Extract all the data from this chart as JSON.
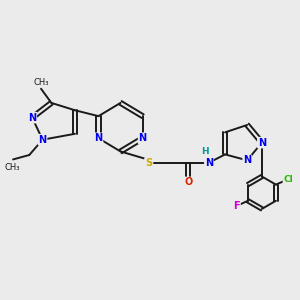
{
  "background_color": "#ebebeb",
  "bond_color": "#1a1a1a",
  "bond_width": 1.4,
  "atom_colors": {
    "N": "#0000ee",
    "S": "#ccaa00",
    "O": "#dd2200",
    "Cl": "#22bb00",
    "F": "#cc00cc",
    "H": "#009999",
    "C": "#1a1a1a"
  },
  "font_size": 7.0,
  "figure_size": [
    3.0,
    3.0
  ],
  "dpi": 100
}
